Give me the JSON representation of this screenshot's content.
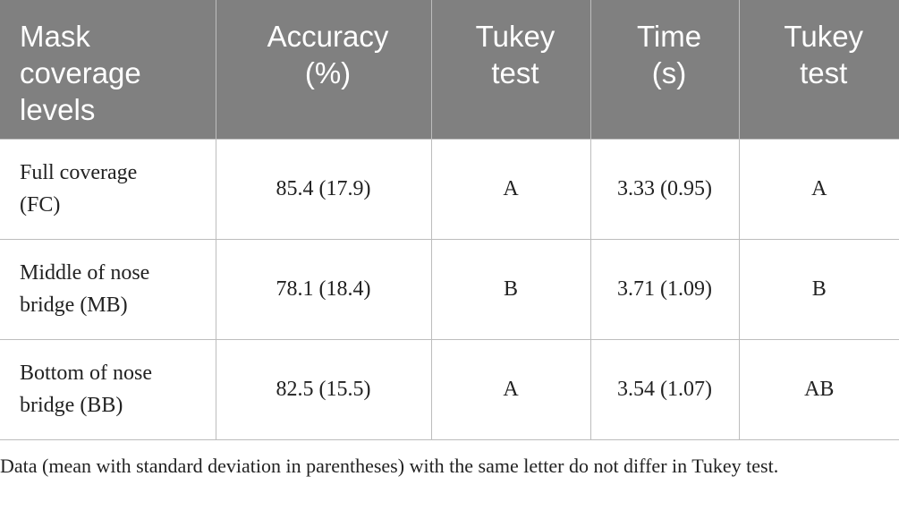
{
  "table": {
    "header": [
      [
        "Mask",
        "coverage",
        "levels"
      ],
      [
        "Accuracy",
        "(%)"
      ],
      [
        "Tukey",
        "test"
      ],
      [
        "Time",
        "(s)"
      ],
      [
        "Tukey",
        "test"
      ]
    ],
    "rows": [
      [
        [
          "Full coverage",
          "(FC)"
        ],
        "85.4 (17.9)",
        "A",
        "3.33 (0.95)",
        "A"
      ],
      [
        [
          "Middle of nose",
          "bridge (MB)"
        ],
        "78.1 (18.4)",
        "B",
        "3.71 (1.09)",
        "B"
      ],
      [
        [
          "Bottom of nose",
          "bridge (BB)"
        ],
        "82.5 (15.5)",
        "A",
        "3.54 (1.07)",
        "AB"
      ]
    ]
  },
  "footnote": "Data (mean with standard deviation in parentheses) with the same letter do not differ in Tukey test."
}
